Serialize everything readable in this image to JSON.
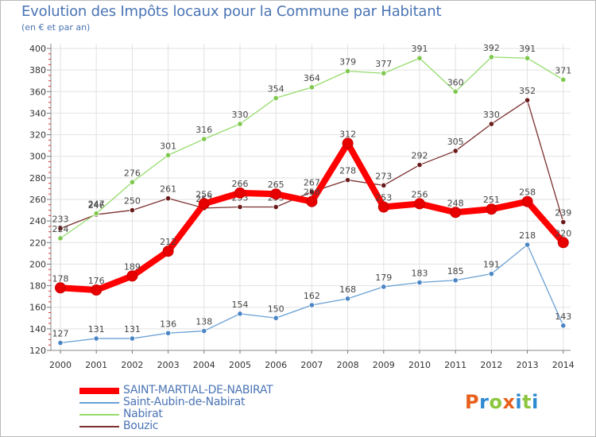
{
  "title": "Evolution des Impôts locaux pour la Commune par Habitant",
  "subtitle": "(en € et par an)",
  "logo": {
    "text": "Proxiti",
    "letter_colors": [
      "#e8601c",
      "#2f8ad0",
      "#8cc63e",
      "#e8601c",
      "#2f8ad0",
      "#8cc63e",
      "#2f8ad0"
    ]
  },
  "chart_data": {
    "type": "line",
    "title": "Evolution des Impôts locaux pour la Commune par Habitant",
    "ylabel": "(en € et par an)",
    "xlabel": "",
    "x": [
      "2000",
      "2001",
      "2002",
      "2003",
      "2004",
      "2005",
      "2006",
      "2007",
      "2008",
      "2009",
      "2010",
      "2011",
      "2012",
      "2013",
      "2014"
    ],
    "ylim": [
      120,
      400
    ],
    "yticks": [
      120,
      140,
      160,
      180,
      200,
      220,
      240,
      260,
      280,
      300,
      320,
      340,
      360,
      380,
      400
    ],
    "grid": true,
    "legend_position": "bottom",
    "series": [
      {
        "name": "Bouzic",
        "color": "#7b2f2f",
        "marker": "#6a1a1a",
        "values": [
          233,
          246,
          250,
          261,
          252,
          253,
          253,
          267,
          278,
          273,
          292,
          305,
          330,
          352,
          239
        ]
      },
      {
        "name": "Nabirat",
        "color": "#95dc6c",
        "marker": "#7fc84e",
        "values": [
          224,
          247,
          276,
          301,
          316,
          330,
          354,
          364,
          379,
          377,
          391,
          360,
          392,
          391,
          371
        ]
      },
      {
        "name": "Saint-Aubin-de-Nabirat",
        "color": "#6aa0d4",
        "marker": "#4a86c5",
        "values": [
          127,
          131,
          131,
          136,
          138,
          154,
          150,
          162,
          168,
          179,
          183,
          185,
          191,
          218,
          143
        ]
      },
      {
        "name": "SAINT-MARTIAL-DE-NABIRAT",
        "color": "#ff0000",
        "marker": "#e60000",
        "values": [
          178,
          176,
          189,
          212,
          256,
          266,
          265,
          258,
          312,
          253,
          256,
          248,
          251,
          258,
          220
        ]
      }
    ],
    "legend": [
      "SAINT-MARTIAL-DE-NABIRAT",
      "Saint-Aubin-de-Nabirat",
      "Nabirat",
      "Bouzic"
    ]
  }
}
